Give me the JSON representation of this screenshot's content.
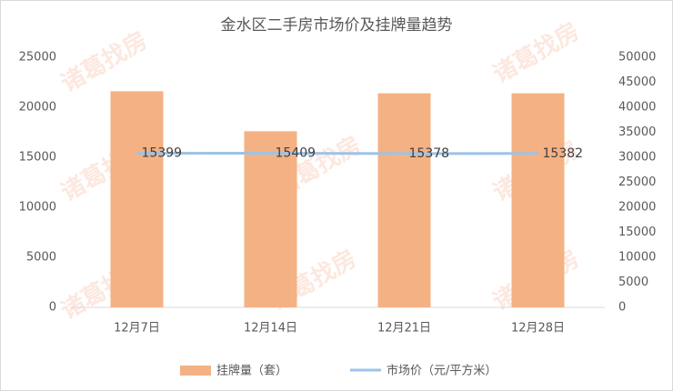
{
  "watermark": "诸葛找房",
  "chart_data": {
    "type": "bar_line",
    "title": "金水区二手房市场价及挂牌量趋势",
    "categories": [
      "12月7日",
      "12月14日",
      "12月21日",
      "12月28日"
    ],
    "series": [
      {
        "name": "挂牌量（套）",
        "type": "bar",
        "color": "#f4b183",
        "values": [
          21600,
          17600,
          21400,
          21400
        ]
      },
      {
        "name": "市场价（元/平方米）",
        "type": "line",
        "color": "#9dc3e6",
        "values": [
          15399,
          15409,
          15378,
          15382
        ],
        "data_labels": true
      }
    ],
    "ylim": [
      0,
      25000
    ],
    "yticks": [
      0,
      5000,
      10000,
      15000,
      20000,
      25000
    ],
    "y2lim": [
      0,
      50000
    ],
    "y2ticks": [
      0,
      5000,
      10000,
      15000,
      20000,
      25000,
      30000,
      35000,
      40000,
      45000,
      50000
    ],
    "legend": "bottom"
  }
}
